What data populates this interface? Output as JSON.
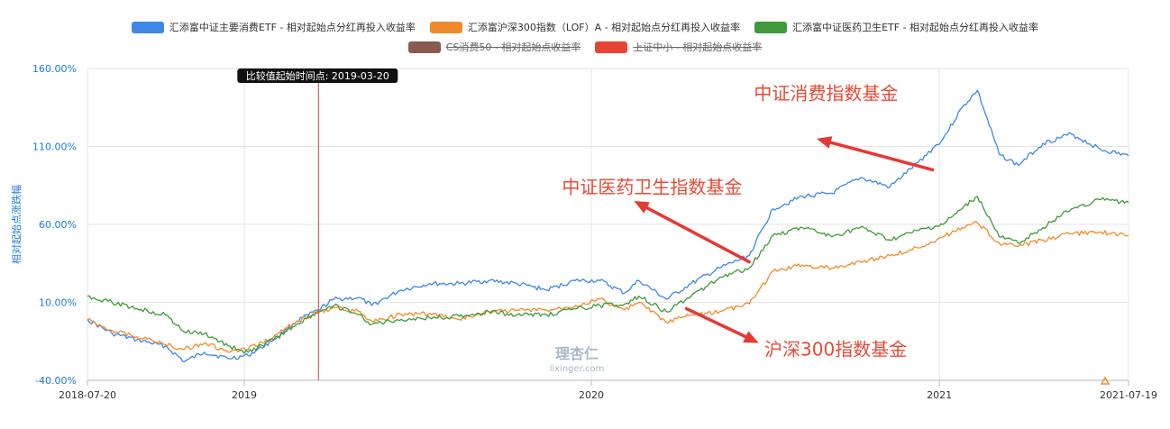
{
  "chart_data": {
    "type": "line",
    "ylabel": "相对起始点涨跌幅",
    "y_ticks": [
      "160.00%",
      "110.00%",
      "60.00%",
      "10.00%",
      "-40.00%"
    ],
    "y_tick_values": [
      160,
      110,
      60,
      10,
      -40
    ],
    "ylim": [
      -40,
      160
    ],
    "x_ticks": [
      {
        "label": "2018-07-20",
        "date": "2018-07-20"
      },
      {
        "label": "2019",
        "date": "2019-01-01"
      },
      {
        "label": "2020",
        "date": "2020-01-01"
      },
      {
        "label": "2021",
        "date": "2021-01-01"
      },
      {
        "label": "2021-07-19",
        "date": "2021-07-19"
      }
    ],
    "xlim": [
      "2018-07-20",
      "2021-07-19"
    ],
    "marker": {
      "label": "比较值起始时间点: 2019-03-20",
      "date": "2019-03-20",
      "color": "#e53935"
    },
    "watermark": {
      "main": "理杏仁",
      "sub": "lixinger.com"
    },
    "legend": [
      {
        "name": "汇添富中证主要消费ETF - 相对起始点分红再投入收益率",
        "color": "#3f86e6",
        "active": true
      },
      {
        "name": "汇添富沪深300指数（LOF）A - 相对起始点分红再投入收益率",
        "color": "#f08b2c",
        "active": true
      },
      {
        "name": "汇添富中证医药卫生ETF - 相对起始点分红再投入收益率",
        "color": "#3e9a3a",
        "active": true
      },
      {
        "name": "CS消费50 - 相对起始点收益率",
        "color": "#8a5a4e",
        "active": false
      },
      {
        "name": "上证中小 - 相对起始点收益率",
        "color": "#ea4335",
        "active": false
      }
    ],
    "series": [
      {
        "name": "汇添富中证主要消费ETF - 相对起始点分红再投入收益率",
        "color": "#3f86e6",
        "points": [
          [
            "2018-07-20",
            -1
          ],
          [
            "2018-08-15",
            -10
          ],
          [
            "2018-09-10",
            -14
          ],
          [
            "2018-10-10",
            -18
          ],
          [
            "2018-10-30",
            -28
          ],
          [
            "2018-11-20",
            -22
          ],
          [
            "2018-12-15",
            -26
          ],
          [
            "2019-01-05",
            -24
          ],
          [
            "2019-02-01",
            -14
          ],
          [
            "2019-02-25",
            -2
          ],
          [
            "2019-03-20",
            5
          ],
          [
            "2019-04-05",
            12
          ],
          [
            "2019-05-01",
            13
          ],
          [
            "2019-05-15",
            8
          ],
          [
            "2019-06-15",
            18
          ],
          [
            "2019-07-15",
            22
          ],
          [
            "2019-08-15",
            22
          ],
          [
            "2019-09-15",
            24
          ],
          [
            "2019-10-15",
            22
          ],
          [
            "2019-11-15",
            18
          ],
          [
            "2019-12-15",
            24
          ],
          [
            "2020-01-10",
            24
          ],
          [
            "2020-02-05",
            16
          ],
          [
            "2020-02-20",
            24
          ],
          [
            "2020-03-20",
            12
          ],
          [
            "2020-04-15",
            22
          ],
          [
            "2020-05-15",
            32
          ],
          [
            "2020-06-15",
            40
          ],
          [
            "2020-07-10",
            70
          ],
          [
            "2020-08-10",
            78
          ],
          [
            "2020-09-10",
            80
          ],
          [
            "2020-10-10",
            90
          ],
          [
            "2020-11-10",
            84
          ],
          [
            "2020-12-10",
            100
          ],
          [
            "2021-01-05",
            115
          ],
          [
            "2021-01-25",
            135
          ],
          [
            "2021-02-10",
            146
          ],
          [
            "2021-03-05",
            105
          ],
          [
            "2021-03-25",
            98
          ],
          [
            "2021-04-20",
            112
          ],
          [
            "2021-05-20",
            118
          ],
          [
            "2021-06-20",
            108
          ],
          [
            "2021-07-19",
            104
          ]
        ]
      },
      {
        "name": "汇添富沪深300指数（LOF）A - 相对起始点分红再投入收益率",
        "color": "#f08b2c",
        "points": [
          [
            "2018-07-20",
            -1
          ],
          [
            "2018-08-15",
            -8
          ],
          [
            "2018-09-10",
            -12
          ],
          [
            "2018-10-10",
            -17
          ],
          [
            "2018-10-30",
            -20
          ],
          [
            "2018-11-20",
            -16
          ],
          [
            "2018-12-15",
            -22
          ],
          [
            "2019-01-05",
            -20
          ],
          [
            "2019-02-01",
            -12
          ],
          [
            "2019-02-25",
            -2
          ],
          [
            "2019-03-20",
            3
          ],
          [
            "2019-04-05",
            7
          ],
          [
            "2019-05-01",
            4
          ],
          [
            "2019-05-15",
            -2
          ],
          [
            "2019-06-15",
            2
          ],
          [
            "2019-07-15",
            3
          ],
          [
            "2019-08-15",
            -1
          ],
          [
            "2019-09-15",
            4
          ],
          [
            "2019-10-15",
            5
          ],
          [
            "2019-11-15",
            5
          ],
          [
            "2019-12-15",
            8
          ],
          [
            "2020-01-10",
            12
          ],
          [
            "2020-02-05",
            5
          ],
          [
            "2020-02-20",
            10
          ],
          [
            "2020-03-20",
            -3
          ],
          [
            "2020-04-15",
            2
          ],
          [
            "2020-05-15",
            4
          ],
          [
            "2020-06-15",
            9
          ],
          [
            "2020-07-10",
            30
          ],
          [
            "2020-08-10",
            34
          ],
          [
            "2020-09-10",
            32
          ],
          [
            "2020-10-10",
            36
          ],
          [
            "2020-11-10",
            40
          ],
          [
            "2020-12-10",
            45
          ],
          [
            "2021-01-05",
            52
          ],
          [
            "2021-01-25",
            58
          ],
          [
            "2021-02-10",
            61
          ],
          [
            "2021-03-05",
            48
          ],
          [
            "2021-03-25",
            46
          ],
          [
            "2021-04-20",
            50
          ],
          [
            "2021-05-20",
            54
          ],
          [
            "2021-06-20",
            55
          ],
          [
            "2021-07-19",
            53
          ]
        ]
      },
      {
        "name": "汇添富中证医药卫生ETF - 相对起始点分红再投入收益率",
        "color": "#3e9a3a",
        "points": [
          [
            "2018-07-20",
            14
          ],
          [
            "2018-08-15",
            10
          ],
          [
            "2018-09-10",
            6
          ],
          [
            "2018-10-10",
            2
          ],
          [
            "2018-10-30",
            -9
          ],
          [
            "2018-11-20",
            -10
          ],
          [
            "2018-12-15",
            -18
          ],
          [
            "2019-01-05",
            -22
          ],
          [
            "2019-02-01",
            -14
          ],
          [
            "2019-02-25",
            -4
          ],
          [
            "2019-03-20",
            4
          ],
          [
            "2019-04-05",
            8
          ],
          [
            "2019-05-01",
            2
          ],
          [
            "2019-05-15",
            -4
          ],
          [
            "2019-06-15",
            -1
          ],
          [
            "2019-07-15",
            0
          ],
          [
            "2019-08-15",
            1
          ],
          [
            "2019-09-15",
            4
          ],
          [
            "2019-10-15",
            2
          ],
          [
            "2019-11-15",
            2
          ],
          [
            "2019-12-15",
            6
          ],
          [
            "2020-01-10",
            8
          ],
          [
            "2020-02-05",
            9
          ],
          [
            "2020-02-20",
            14
          ],
          [
            "2020-03-20",
            4
          ],
          [
            "2020-04-15",
            14
          ],
          [
            "2020-05-15",
            26
          ],
          [
            "2020-06-15",
            32
          ],
          [
            "2020-07-10",
            53
          ],
          [
            "2020-08-10",
            58
          ],
          [
            "2020-09-10",
            52
          ],
          [
            "2020-10-10",
            58
          ],
          [
            "2020-11-10",
            50
          ],
          [
            "2020-12-10",
            56
          ],
          [
            "2021-01-05",
            60
          ],
          [
            "2021-01-25",
            70
          ],
          [
            "2021-02-10",
            78
          ],
          [
            "2021-03-05",
            52
          ],
          [
            "2021-03-25",
            48
          ],
          [
            "2021-04-20",
            58
          ],
          [
            "2021-05-20",
            70
          ],
          [
            "2021-06-20",
            76
          ],
          [
            "2021-07-19",
            74
          ]
        ]
      }
    ],
    "annotations": [
      {
        "text": "中证消费指数基金",
        "color": "#e84a36",
        "at": [
          "2020-06-20",
          140
        ],
        "arrow_from": [
          "2020-12-25",
          95
        ],
        "arrow_to": [
          "2020-08-25",
          115
        ]
      },
      {
        "text": "中证医药卫生指数基金",
        "color": "#e84a36",
        "at": [
          "2019-12-01",
          80
        ],
        "arrow_from": [
          "2020-06-15",
          36
        ],
        "arrow_to": [
          "2020-02-15",
          75
        ]
      },
      {
        "text": "沪深300指数基金",
        "color": "#e84a36",
        "at": [
          "2020-07-01",
          -24
        ],
        "arrow_from": [
          "2020-04-10",
          6
        ],
        "arrow_to": [
          "2020-06-25",
          -16
        ]
      }
    ]
  }
}
